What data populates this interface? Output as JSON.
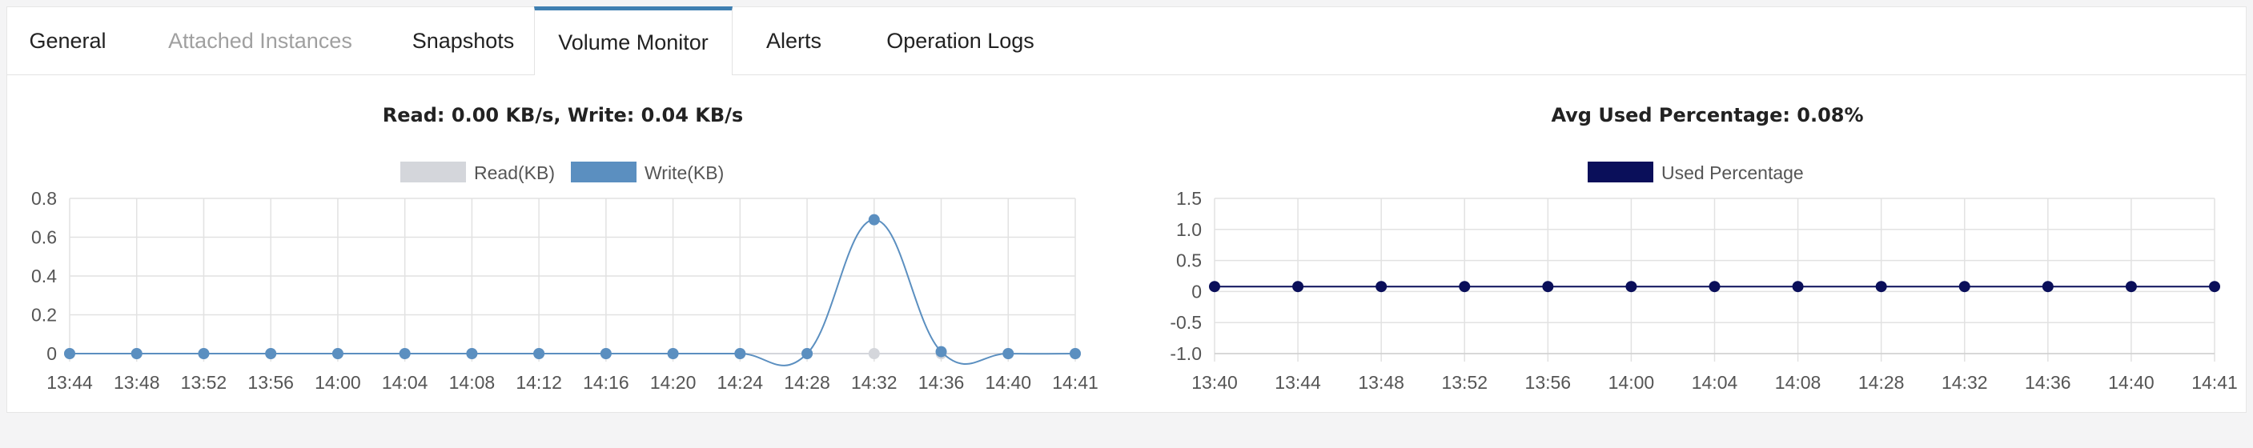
{
  "tabs": [
    {
      "label": "General",
      "state": "normal"
    },
    {
      "label": "Attached Instances",
      "state": "disabled"
    },
    {
      "label": "Snapshots",
      "state": "normal"
    },
    {
      "label": "Volume Monitor",
      "state": "active"
    },
    {
      "label": "Alerts",
      "state": "normal"
    },
    {
      "label": "Operation Logs",
      "state": "normal"
    }
  ],
  "colors": {
    "read": "#d4d6db",
    "write": "#5b8fc0",
    "used": "#0a0f5a",
    "active_tab_border": "#3f7fb1"
  },
  "chart_data": [
    {
      "type": "line",
      "title": "Read: 0.00 KB/s, Write: 0.04 KB/s",
      "legend": [
        "Read(KB)",
        "Write(KB)"
      ],
      "legend_placement": "top-center",
      "categories": [
        "13:44",
        "13:48",
        "13:52",
        "13:56",
        "14:00",
        "14:04",
        "14:08",
        "14:12",
        "14:16",
        "14:20",
        "14:24",
        "14:28",
        "14:32",
        "14:36",
        "14:40",
        "14:41"
      ],
      "series": [
        {
          "name": "Read(KB)",
          "values": [
            0,
            0,
            0,
            0,
            0,
            0,
            0,
            0,
            0,
            0,
            0,
            0,
            0,
            0,
            0,
            0
          ]
        },
        {
          "name": "Write(KB)",
          "values": [
            0,
            0,
            0,
            0,
            0,
            0,
            0,
            0,
            0,
            0,
            0,
            0,
            0.69,
            0.01,
            0,
            0
          ]
        }
      ],
      "yticks": [
        "0",
        "0.2",
        "0.4",
        "0.6",
        "0.8"
      ],
      "ylim": [
        0,
        0.8
      ],
      "smooth": true,
      "grid": true
    },
    {
      "type": "line",
      "title": "Avg Used Percentage: 0.08%",
      "legend": [
        "Used Percentage"
      ],
      "legend_placement": "top-center",
      "categories": [
        "13:40",
        "13:44",
        "13:48",
        "13:52",
        "13:56",
        "14:00",
        "14:04",
        "14:08",
        "14:28",
        "14:32",
        "14:36",
        "14:40",
        "14:41"
      ],
      "series": [
        {
          "name": "Used Percentage",
          "values": [
            0.08,
            0.08,
            0.08,
            0.08,
            0.08,
            0.08,
            0.08,
            0.08,
            0.08,
            0.08,
            0.08,
            0.08,
            0.08
          ]
        }
      ],
      "yticks": [
        "-1.0",
        "-0.5",
        "0",
        "0.5",
        "1.0",
        "1.5"
      ],
      "ylim": [
        -1.0,
        1.5
      ],
      "smooth": false,
      "grid": true
    }
  ]
}
